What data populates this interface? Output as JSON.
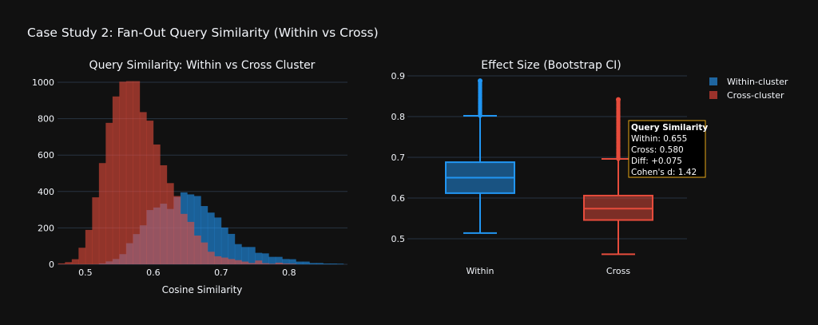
{
  "title": "Case Study 2: Fan-Out Query Similarity (Within vs Cross)",
  "colors": {
    "within": "#2196f3",
    "cross": "#e74c3c",
    "background": "#111111",
    "grid": "#283442",
    "tooltip_border": "#e6a817"
  },
  "legend": {
    "placement": "top-right",
    "items": [
      "Within-cluster",
      "Cross-cluster"
    ]
  },
  "chart_data": [
    {
      "type": "histogram",
      "title": "Query Similarity: Within vs Cross Cluster",
      "xlabel": "Cosine Similarity",
      "ylabel": "",
      "barmode": "overlay",
      "bin_width": 0.01,
      "bin_start": 0.46,
      "xlim": [
        0.459,
        0.886
      ],
      "ylim": [
        0,
        1000
      ],
      "xticks": [
        "0.5",
        "0.6",
        "0.7",
        "0.8"
      ],
      "yticks": [
        "0",
        "200",
        "400",
        "600",
        "800",
        "1000"
      ],
      "grid": true,
      "series": [
        {
          "name": "Within-cluster",
          "values": [
            0,
            0,
            0,
            0,
            0,
            0,
            5,
            16,
            29,
            56,
            116,
            166,
            214,
            298,
            312,
            333,
            304,
            370,
            395,
            384,
            375,
            320,
            284,
            257,
            202,
            167,
            111,
            95,
            95,
            63,
            60,
            41,
            41,
            29,
            28,
            15,
            15,
            7,
            7,
            4,
            4,
            3
          ]
        },
        {
          "name": "Cross-cluster",
          "values": [
            5,
            12,
            28,
            91,
            189,
            368,
            556,
            777,
            922,
            1003,
            1006,
            1006,
            836,
            789,
            658,
            544,
            446,
            375,
            277,
            233,
            158,
            120,
            69,
            44,
            37,
            29,
            23,
            15,
            7,
            21,
            6,
            3,
            9,
            4,
            3,
            0,
            0,
            0,
            0,
            0,
            0,
            0
          ]
        }
      ]
    },
    {
      "type": "box",
      "title": "Effect Size (Bootstrap CI)",
      "categories": [
        "Within",
        "Cross"
      ],
      "ylim": [
        0.45,
        0.92
      ],
      "yticks": [
        "0.5",
        "0.6",
        "0.7",
        "0.8",
        "0.9"
      ],
      "grid": true,
      "series": [
        {
          "name": "Within-cluster",
          "category": "Within",
          "lower_whisker": 0.514,
          "q1": 0.612,
          "median": 0.65,
          "q3": 0.688,
          "upper_whisker": 0.802,
          "outliers_max": 0.888
        },
        {
          "name": "Cross-cluster",
          "category": "Cross",
          "lower_whisker": 0.462,
          "q1": 0.546,
          "median": 0.574,
          "q3": 0.606,
          "upper_whisker": 0.696,
          "outliers_max": 0.842
        }
      ],
      "annotation": {
        "title": "Query Similarity",
        "lines": [
          "Within: 0.655",
          "Cross: 0.580",
          "Diff: +0.075",
          "Cohen's d: 1.42"
        ]
      }
    }
  ]
}
